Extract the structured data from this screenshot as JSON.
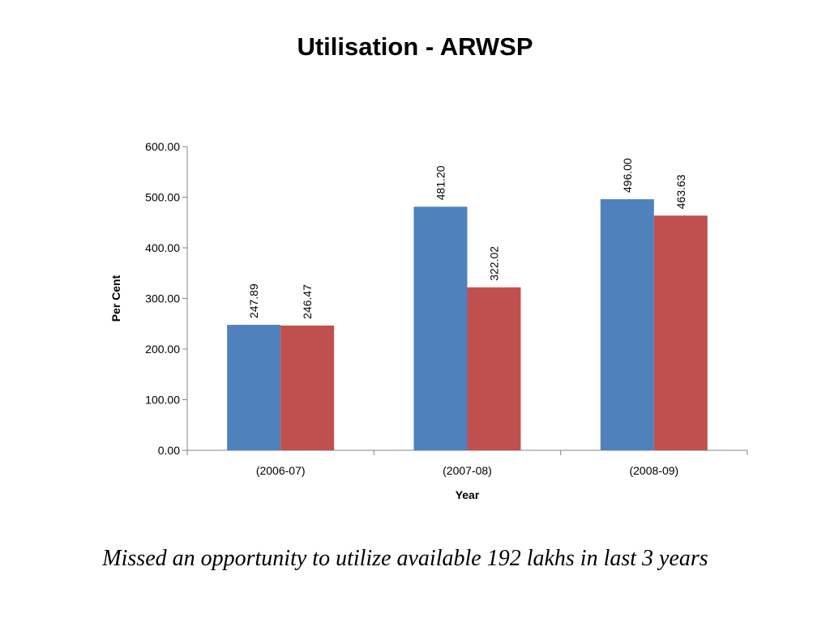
{
  "slide": {
    "title": "Utilisation - ARWSP",
    "caption": "Missed an opportunity to utilize available 192 lakhs in last 3 years"
  },
  "chart_data": {
    "type": "bar",
    "title": "",
    "xlabel": "Year",
    "ylabel": "Per Cent",
    "categories": [
      "(2006-07)",
      "(2007-08)",
      "(2008-09)"
    ],
    "series": [
      {
        "values": [
          247.89,
          481.2,
          496.0
        ],
        "labels": [
          "247.89",
          "481.20",
          "496.00"
        ],
        "color": "#4F81BD"
      },
      {
        "values": [
          246.47,
          322.02,
          463.63
        ],
        "labels": [
          "246.47",
          "322.02",
          "463.63"
        ],
        "color": "#C0504D"
      }
    ],
    "ylim": [
      0,
      600
    ],
    "yticks": [
      0,
      100,
      200,
      300,
      400,
      500,
      600
    ],
    "ytick_labels": [
      "0.00",
      "100.00",
      "200.00",
      "300.00",
      "400.00",
      "500.00",
      "600.00"
    ],
    "grid": false,
    "legend": "none",
    "data_label_orientation": "vertical"
  }
}
